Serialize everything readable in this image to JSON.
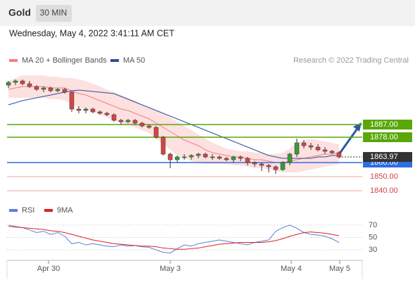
{
  "header": {
    "title": "Gold",
    "timeframe": "30 MIN",
    "date": "Wednesday, May 4, 2022 3:41:11 AM CET"
  },
  "credit": "Research © 2022 Trading Central",
  "chart_data": [
    {
      "type": "candlestick",
      "open": [
        1915,
        1917,
        1918,
        1916,
        1914,
        1912,
        1913,
        1911,
        1912,
        1910,
        1898,
        1897,
        1898,
        1896,
        1895,
        1894,
        1890,
        1889,
        1890,
        1888,
        1886,
        1885,
        1878,
        1866,
        1862,
        1864,
        1864,
        1865,
        1866,
        1864,
        1864,
        1863,
        1862,
        1864,
        1863,
        1860,
        1859,
        1858,
        1857,
        1855,
        1860,
        1866,
        1874,
        1872,
        1871,
        1869,
        1868,
        1867
      ],
      "high": [
        1918,
        1919,
        1919,
        1918,
        1915,
        1914,
        1914,
        1913,
        1913,
        1911,
        1900,
        1899,
        1899,
        1897,
        1896,
        1895,
        1891,
        1891,
        1891,
        1889,
        1887,
        1886,
        1879,
        1867,
        1865,
        1866,
        1866,
        1867,
        1867,
        1866,
        1865,
        1864,
        1865,
        1865,
        1864,
        1861,
        1860,
        1859,
        1858,
        1861,
        1867,
        1877,
        1876,
        1874,
        1873,
        1871,
        1869,
        1868
      ],
      "low": [
        1913,
        1915,
        1915,
        1913,
        1911,
        1910,
        1910,
        1910,
        1909,
        1896,
        1895,
        1895,
        1895,
        1894,
        1893,
        1889,
        1887,
        1888,
        1887,
        1885,
        1884,
        1877,
        1865,
        1856,
        1860,
        1862,
        1862,
        1863,
        1863,
        1862,
        1862,
        1861,
        1860,
        1861,
        1858,
        1857,
        1854,
        1853,
        1852,
        1854,
        1858,
        1864,
        1870,
        1869,
        1868,
        1866,
        1866,
        1863
      ],
      "close": [
        1917,
        1918,
        1916,
        1914,
        1912,
        1913,
        1911,
        1912,
        1910,
        1898,
        1897,
        1898,
        1896,
        1895,
        1894,
        1890,
        1889,
        1890,
        1888,
        1886,
        1885,
        1878,
        1866,
        1862,
        1864,
        1864,
        1865,
        1866,
        1864,
        1864,
        1863,
        1862,
        1864,
        1863,
        1860,
        1859,
        1858,
        1857,
        1855,
        1860,
        1866,
        1874,
        1872,
        1871,
        1869,
        1868,
        1867,
        1864
      ],
      "up_color": "#3a9a3a",
      "down_color": "#d64545",
      "series": [
        {
          "name": "MA 20 + Bollinger Bands",
          "color": "#f08080",
          "band_color": "#fde0e0",
          "values": [
            1912,
            1913,
            1914,
            1914,
            1914,
            1914,
            1913,
            1913,
            1913,
            1911,
            1909,
            1908,
            1906,
            1904,
            1902,
            1900,
            1898,
            1897,
            1895,
            1893,
            1891,
            1888,
            1885,
            1882,
            1879,
            1876,
            1874,
            1872,
            1869,
            1867,
            1866,
            1865,
            1864,
            1864,
            1863,
            1862,
            1862,
            1861,
            1860,
            1860,
            1861,
            1862,
            1863,
            1864,
            1865,
            1866,
            1866,
            1867
          ],
          "upper": [
            1918,
            1920,
            1922,
            1922,
            1922,
            1922,
            1921,
            1921,
            1920,
            1920,
            1919,
            1918,
            1916,
            1914,
            1912,
            1910,
            1908,
            1906,
            1904,
            1901,
            1899,
            1897,
            1895,
            1892,
            1889,
            1886,
            1883,
            1880,
            1877,
            1874,
            1872,
            1870,
            1869,
            1868,
            1868,
            1867,
            1867,
            1866,
            1866,
            1867,
            1870,
            1874,
            1876,
            1877,
            1876,
            1875,
            1874,
            1873
          ],
          "lower": [
            1906,
            1906,
            1906,
            1906,
            1906,
            1906,
            1905,
            1905,
            1904,
            1902,
            1899,
            1898,
            1896,
            1894,
            1892,
            1890,
            1888,
            1887,
            1885,
            1883,
            1881,
            1877,
            1873,
            1869,
            1865,
            1863,
            1861,
            1860,
            1859,
            1859,
            1859,
            1859,
            1858,
            1858,
            1857,
            1856,
            1856,
            1855,
            1854,
            1853,
            1853,
            1853,
            1854,
            1855,
            1856,
            1857,
            1858,
            1859
          ]
        },
        {
          "name": "MA 50",
          "color": "#2b4f9e",
          "values": [
            1901,
            1902.5,
            1904,
            1905,
            1906,
            1907,
            1908,
            1909,
            1910,
            1911,
            1911.5,
            1911,
            1910.5,
            1910,
            1909.5,
            1909,
            1907,
            1905,
            1903,
            1901,
            1899,
            1897,
            1895,
            1893,
            1891,
            1889,
            1887,
            1885,
            1883,
            1881,
            1879,
            1877,
            1875,
            1873,
            1871,
            1869,
            1867,
            1865,
            1864,
            1863,
            1863,
            1863,
            1863,
            1863,
            1864,
            1864,
            1865,
            1865
          ]
        }
      ],
      "levels": [
        {
          "value": 1887,
          "label": "1887.00",
          "color": "#5aa70a",
          "boxed": true
        },
        {
          "value": 1878,
          "label": "1878.00",
          "color": "#5aa70a",
          "boxed": true
        },
        {
          "value": 1860,
          "label": "1860.00",
          "color": "#2e6fe0",
          "boxed": true
        },
        {
          "value": 1850,
          "label": "1850.00",
          "color": "#f4a0a0",
          "boxed": false
        },
        {
          "value": 1840,
          "label": "1840.00",
          "color": "#f4a0a0",
          "boxed": false
        }
      ],
      "last_price": {
        "value": 1863.97,
        "label": "1863.97",
        "color": "#333333"
      },
      "xlim": [
        -0.2,
        50.3
      ],
      "ylim": [
        1833,
        1928
      ]
    },
    {
      "type": "line",
      "series": [
        {
          "name": "RSI",
          "color": "#5b7fd6",
          "values": [
            70,
            68,
            66,
            62,
            58,
            60,
            55,
            58,
            52,
            40,
            42,
            38,
            40,
            38,
            36,
            35,
            38,
            36,
            37,
            35,
            34,
            30,
            26,
            25,
            32,
            38,
            36,
            40,
            42,
            44,
            46,
            44,
            42,
            40,
            38,
            42,
            44,
            46,
            60,
            66,
            70,
            65,
            58,
            55,
            54,
            52,
            48,
            42
          ]
        },
        {
          "name": "9MA",
          "color": "#e02020",
          "values": [
            68,
            67,
            66,
            65,
            64,
            63,
            61,
            60,
            58,
            55,
            52,
            49,
            46,
            44,
            42,
            40,
            39,
            38,
            37,
            36,
            36,
            35,
            33,
            32,
            31,
            31,
            32,
            33,
            35,
            37,
            39,
            40,
            41,
            42,
            42,
            42,
            42,
            43,
            45,
            48,
            52,
            55,
            58,
            59,
            58,
            57,
            55,
            53
          ]
        }
      ],
      "xlim": [
        -0.2,
        50.3
      ],
      "ylim": [
        13,
        87
      ],
      "yticks": [
        30,
        50,
        70
      ],
      "xticks": [
        {
          "value": 5.7,
          "label": "Apr 30"
        },
        {
          "value": 23,
          "label": "May 3"
        },
        {
          "value": 40.2,
          "label": "May 4"
        },
        {
          "value": 47.1,
          "label": "May 5"
        }
      ]
    }
  ]
}
